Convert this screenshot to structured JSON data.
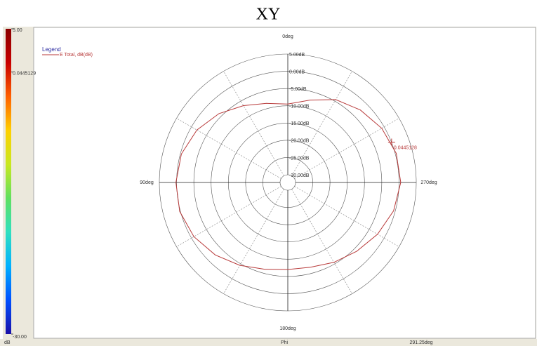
{
  "chart_data": {
    "type": "polar",
    "title": "XY",
    "legend_title": "Legend",
    "series": [
      {
        "name": "E Total, dB(dB)",
        "color": "#b83a3a",
        "theta": [
          0,
          15,
          30,
          45,
          60,
          75,
          90,
          105,
          120,
          135,
          150,
          165,
          180,
          195,
          210,
          225,
          240,
          255,
          270,
          285,
          300,
          315,
          330,
          345
        ],
        "values": [
          -9.5,
          -8.5,
          -6.5,
          -4,
          -1.8,
          -0.3,
          0.2,
          0.2,
          -0.8,
          -2.5,
          -4.5,
          -6.2,
          -7,
          -6.8,
          -5.5,
          -4,
          -2.2,
          -0.5,
          0.5,
          0.3,
          -0.8,
          -2.5,
          -4.5,
          -7.5
        ]
      }
    ],
    "rlim": [
      -30,
      5
    ],
    "rticks": [
      {
        "value": 5,
        "label": "5.00dB"
      },
      {
        "value": 0,
        "label": "0.00dB"
      },
      {
        "value": -5,
        "label": "-5.00dB"
      },
      {
        "value": -10,
        "label": "-10.00dB"
      },
      {
        "value": -15,
        "label": "-15.00dB"
      },
      {
        "value": -20,
        "label": "-20.00dB"
      },
      {
        "value": -25,
        "label": "-25.00dB"
      },
      {
        "value": -30,
        "label": "-30.00dB"
      }
    ],
    "thetaticks": [
      {
        "value": 0,
        "label": "0deg"
      },
      {
        "value": 90,
        "label": "90deg"
      },
      {
        "value": 180,
        "label": "180deg"
      },
      {
        "value": 270,
        "label": "270deg"
      }
    ],
    "marker": {
      "theta": 291.25,
      "value": 0.0445128
    },
    "colorbar": {
      "lim": [
        -30,
        5
      ],
      "ticks": [
        {
          "value": 5,
          "label": "5.00"
        },
        0.0445129,
        {
          "value": -30,
          "label": "-30.00"
        }
      ],
      "unit": "dB"
    },
    "status": {
      "axis": "Phi",
      "position": "291.25deg"
    }
  }
}
